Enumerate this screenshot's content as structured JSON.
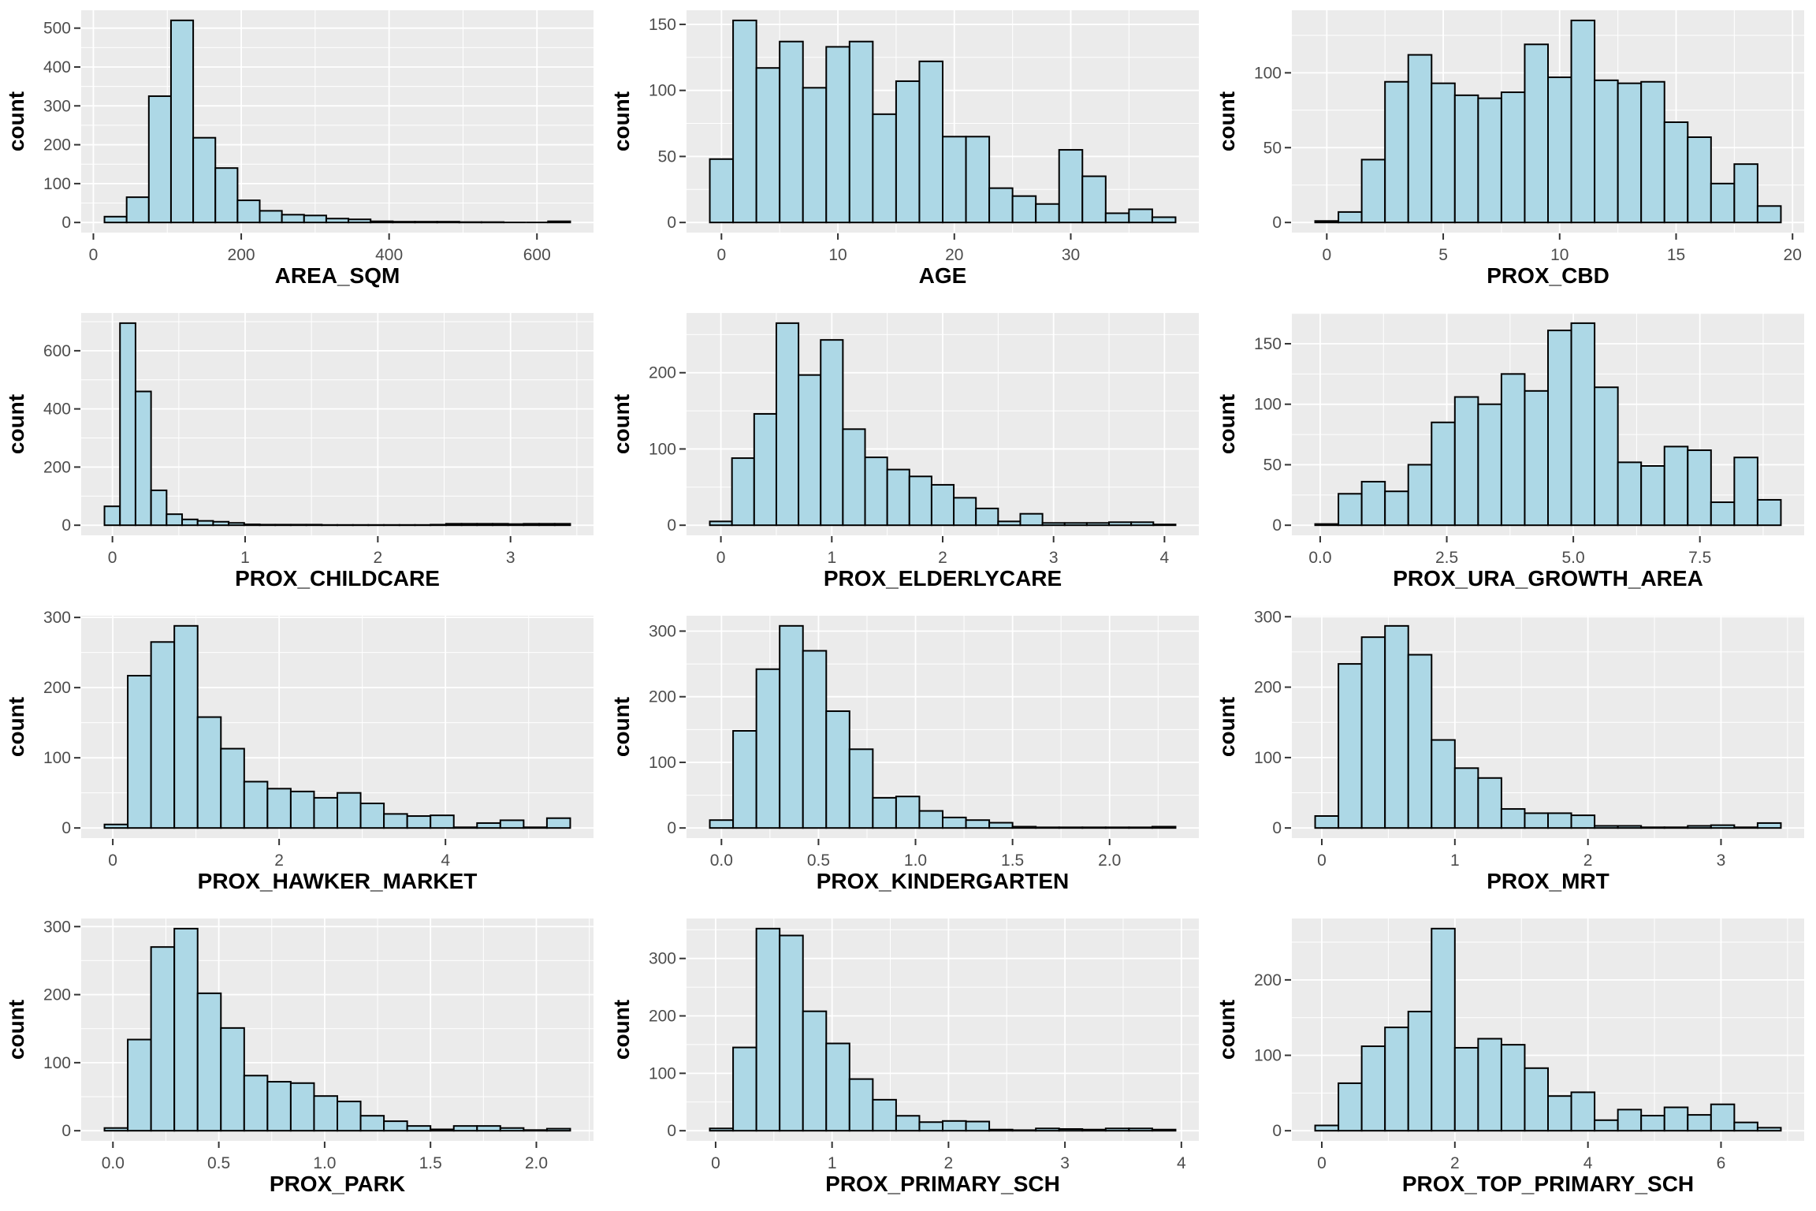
{
  "figure": {
    "rows": 4,
    "cols": 3,
    "shared_ylabel": "count",
    "style": {
      "background": "#FFFFFF",
      "panel_background": "#EBEBEB",
      "grid_color": "#FFFFFF",
      "bar_fill": "#ADD8E6",
      "bar_stroke": "#000000",
      "tick_mark_color": "#333333",
      "tick_label_color": "#4D4D4D",
      "axis_title_color": "#000000"
    }
  },
  "chart_data": [
    {
      "type": "bar",
      "subtype": "histogram",
      "xlabel": "AREA_SQM",
      "ylabel": "count",
      "bin_start": 15,
      "bin_width": 30,
      "counts": [
        15,
        65,
        325,
        520,
        218,
        140,
        57,
        30,
        20,
        18,
        10,
        8,
        3,
        2,
        2,
        2,
        1,
        1,
        0,
        0,
        3
      ],
      "x_tick_values": [
        0,
        200,
        400,
        600
      ],
      "x_tick_labels": [
        "0",
        "200",
        "400",
        "600"
      ],
      "y_ticks": [
        0,
        100,
        200,
        300,
        400,
        500
      ],
      "ylim_max": 546
    },
    {
      "type": "bar",
      "subtype": "histogram",
      "xlabel": "AGE",
      "ylabel": "count",
      "bin_start": -1,
      "bin_width": 2,
      "counts": [
        48,
        153,
        117,
        137,
        102,
        133,
        137,
        82,
        107,
        122,
        65,
        65,
        26,
        20,
        14,
        55,
        35,
        7,
        10,
        4
      ],
      "x_tick_values": [
        0,
        10,
        20,
        30
      ],
      "x_tick_labels": [
        "0",
        "10",
        "20",
        "30"
      ],
      "y_ticks": [
        0,
        50,
        100,
        150
      ],
      "ylim_max": 160.7
    },
    {
      "type": "bar",
      "subtype": "histogram",
      "xlabel": "PROX_CBD",
      "ylabel": "count",
      "bin_start": -0.5,
      "bin_width": 1,
      "counts": [
        1,
        7,
        42,
        94,
        112,
        93,
        85,
        83,
        87,
        119,
        97,
        135,
        95,
        93,
        94,
        67,
        57,
        26,
        39,
        11
      ],
      "x_tick_values": [
        0,
        5,
        10,
        15,
        20
      ],
      "x_tick_labels": [
        "0",
        "5",
        "10",
        "15",
        "20"
      ],
      "y_ticks": [
        0,
        50,
        100
      ],
      "ylim_max": 141.8
    },
    {
      "type": "bar",
      "subtype": "histogram",
      "xlabel": "PROX_CHILDCARE",
      "ylabel": "count",
      "bin_start": -0.06,
      "bin_width": 0.117,
      "counts": [
        65,
        695,
        460,
        120,
        38,
        20,
        15,
        12,
        8,
        3,
        2,
        2,
        2,
        2,
        1,
        1,
        1,
        1,
        1,
        1,
        1,
        2,
        5,
        5,
        5,
        5,
        4,
        5,
        5,
        5
      ],
      "x_tick_values": [
        0,
        1,
        2,
        3
      ],
      "x_tick_labels": [
        "0",
        "1",
        "2",
        "3"
      ],
      "y_ticks": [
        0,
        200,
        400,
        600
      ],
      "ylim_max": 729.8
    },
    {
      "type": "bar",
      "subtype": "histogram",
      "xlabel": "PROX_ELDERLYCARE",
      "ylabel": "count",
      "bin_start": -0.1,
      "bin_width": 0.2,
      "counts": [
        5,
        88,
        146,
        265,
        197,
        243,
        126,
        89,
        73,
        64,
        53,
        36,
        22,
        5,
        15,
        3,
        3,
        3,
        4,
        4,
        1
      ],
      "x_tick_values": [
        0,
        1,
        2,
        3,
        4
      ],
      "x_tick_labels": [
        "0",
        "1",
        "2",
        "3",
        "4"
      ],
      "y_ticks": [
        0,
        100,
        200
      ],
      "ylim_max": 278.3
    },
    {
      "type": "bar",
      "subtype": "histogram",
      "xlabel": "PROX_URA_GROWTH_AREA",
      "ylabel": "count",
      "bin_start": -0.1,
      "bin_width": 0.46,
      "counts": [
        1,
        26,
        36,
        28,
        50,
        85,
        106,
        100,
        125,
        111,
        161,
        167,
        114,
        52,
        49,
        65,
        62,
        19,
        56,
        21
      ],
      "x_tick_values": [
        0,
        2.5,
        5,
        7.5
      ],
      "x_tick_labels": [
        "0.0",
        "2.5",
        "5.0",
        "7.5"
      ],
      "y_ticks": [
        0,
        50,
        100,
        150
      ],
      "ylim_max": 175.4
    },
    {
      "type": "bar",
      "subtype": "histogram",
      "xlabel": "PROX_HAWKER_MARKET",
      "ylabel": "count",
      "bin_start": -0.1,
      "bin_width": 0.28,
      "counts": [
        5,
        217,
        265,
        288,
        158,
        113,
        66,
        56,
        52,
        43,
        50,
        35,
        20,
        17,
        18,
        1,
        7,
        11,
        1,
        14
      ],
      "x_tick_values": [
        0,
        2,
        4
      ],
      "x_tick_labels": [
        "0",
        "2",
        "4"
      ],
      "y_ticks": [
        0,
        100,
        200,
        300
      ],
      "ylim_max": 302.4
    },
    {
      "type": "bar",
      "subtype": "histogram",
      "xlabel": "PROX_KINDERGARTEN",
      "ylabel": "count",
      "bin_start": -0.06,
      "bin_width": 0.12,
      "counts": [
        12,
        148,
        242,
        308,
        270,
        178,
        120,
        46,
        48,
        26,
        16,
        12,
        8,
        2,
        1,
        1,
        1,
        1,
        1,
        2
      ],
      "x_tick_values": [
        0,
        0.5,
        1,
        1.5,
        2
      ],
      "x_tick_labels": [
        "0.0",
        "0.5",
        "1.0",
        "1.5",
        "2.0"
      ],
      "y_ticks": [
        0,
        100,
        200,
        300
      ],
      "ylim_max": 323.4
    },
    {
      "type": "bar",
      "subtype": "histogram",
      "xlabel": "PROX_MRT",
      "ylabel": "count",
      "bin_start": -0.05,
      "bin_width": 0.175,
      "counts": [
        17,
        233,
        271,
        287,
        246,
        125,
        85,
        71,
        27,
        21,
        21,
        18,
        3,
        3,
        1,
        1,
        3,
        4,
        1,
        7
      ],
      "x_tick_values": [
        0,
        1,
        2,
        3
      ],
      "x_tick_labels": [
        "0",
        "1",
        "2",
        "3"
      ],
      "y_ticks": [
        0,
        100,
        200,
        300
      ],
      "ylim_max": 301.4
    },
    {
      "type": "bar",
      "subtype": "histogram",
      "xlabel": "PROX_PARK",
      "ylabel": "count",
      "bin_start": -0.04,
      "bin_width": 0.11,
      "counts": [
        4,
        134,
        270,
        297,
        202,
        151,
        81,
        72,
        70,
        51,
        43,
        22,
        14,
        7,
        2,
        7,
        7,
        4,
        1,
        3
      ],
      "x_tick_values": [
        0,
        0.5,
        1,
        1.5,
        2
      ],
      "x_tick_labels": [
        "0.0",
        "0.5",
        "1.0",
        "1.5",
        "2.0"
      ],
      "y_ticks": [
        0,
        100,
        200,
        300
      ],
      "ylim_max": 311.9
    },
    {
      "type": "bar",
      "subtype": "histogram",
      "xlabel": "PROX_PRIMARY_SCH",
      "ylabel": "count",
      "bin_start": -0.05,
      "bin_width": 0.2,
      "counts": [
        4,
        145,
        352,
        340,
        208,
        152,
        90,
        54,
        26,
        15,
        17,
        16,
        2,
        1,
        4,
        3,
        2,
        4,
        4,
        2
      ],
      "x_tick_values": [
        0,
        1,
        2,
        3,
        4
      ],
      "x_tick_labels": [
        "0",
        "1",
        "2",
        "3",
        "4"
      ],
      "y_ticks": [
        0,
        100,
        200,
        300
      ],
      "ylim_max": 369.6
    },
    {
      "type": "bar",
      "subtype": "histogram",
      "xlabel": "PROX_TOP_PRIMARY_SCH",
      "ylabel": "count",
      "bin_start": -0.1,
      "bin_width": 0.35,
      "counts": [
        7,
        63,
        112,
        137,
        158,
        268,
        110,
        122,
        114,
        83,
        46,
        51,
        14,
        28,
        20,
        31,
        21,
        35,
        11,
        4
      ],
      "x_tick_values": [
        0,
        2,
        4,
        6
      ],
      "x_tick_labels": [
        "0",
        "2",
        "4",
        "6"
      ],
      "y_ticks": [
        0,
        100,
        200
      ],
      "ylim_max": 281.4
    }
  ]
}
